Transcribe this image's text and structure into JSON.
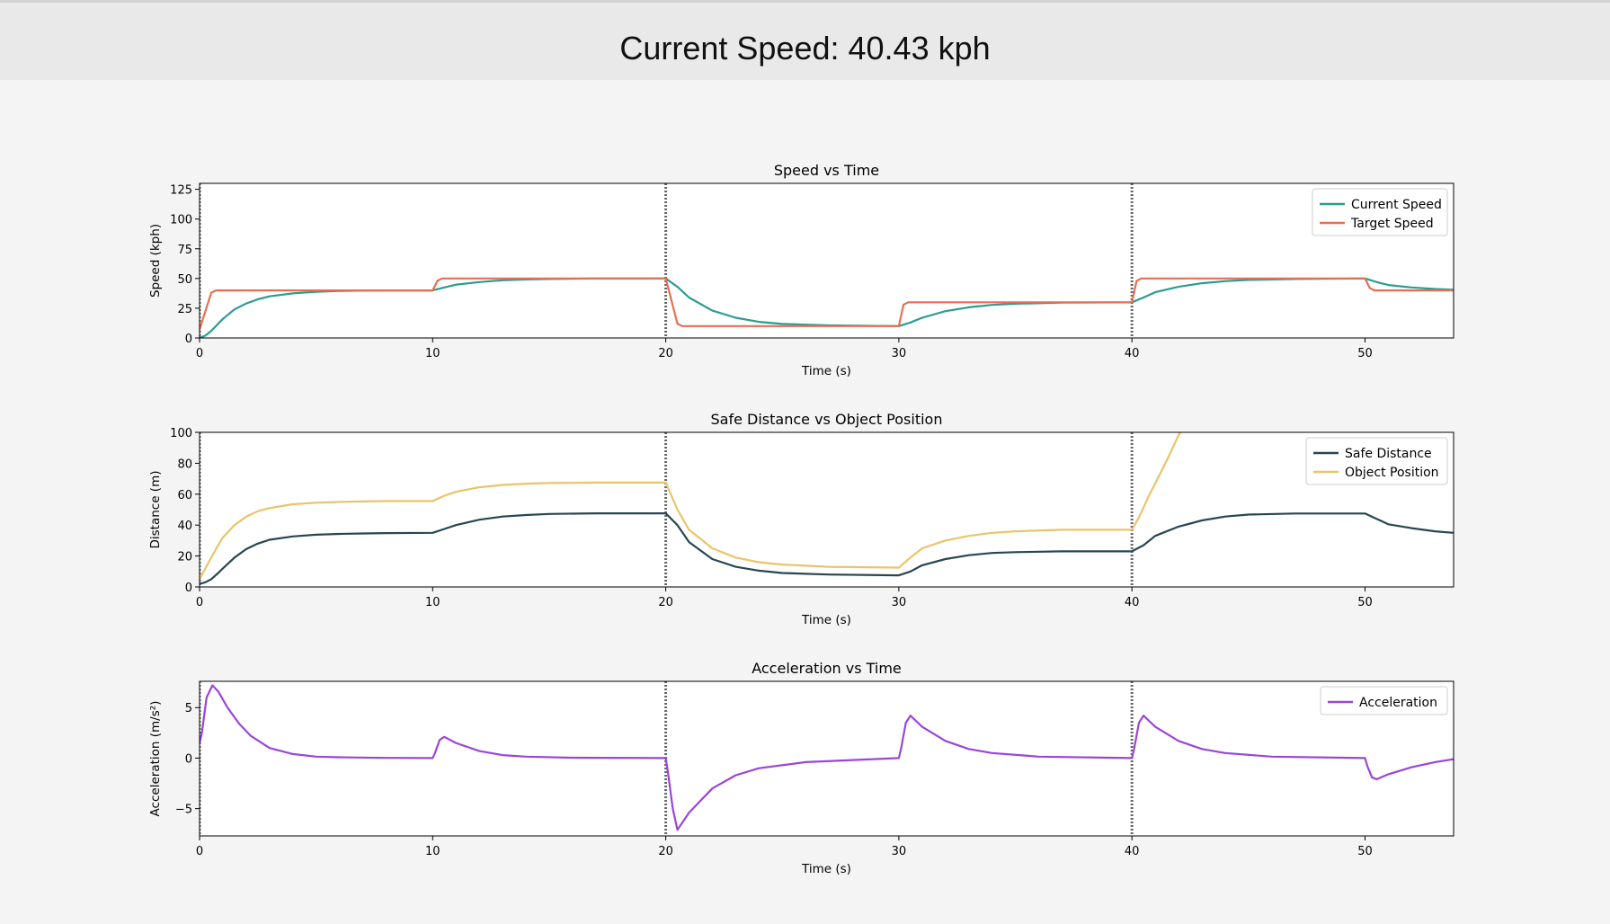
{
  "header": {
    "title": "Current Speed: 40.43 kph"
  },
  "markers": [
    20,
    40
  ],
  "chart_data": [
    {
      "type": "line",
      "title": "Speed vs Time",
      "xlabel": "Time (s)",
      "ylabel": "Speed (kph)",
      "xlim": [
        0,
        53.8
      ],
      "ylim": [
        0,
        130
      ],
      "xticks": [
        0,
        10,
        20,
        30,
        40,
        50
      ],
      "yticks": [
        0,
        25,
        50,
        75,
        100,
        125
      ],
      "legend": "top-right",
      "series": [
        {
          "name": "Current Speed",
          "color": "#2a9d8f",
          "x": [
            0,
            0.25,
            0.5,
            0.8,
            1,
            1.5,
            2,
            2.5,
            3,
            4,
            5,
            6,
            7,
            8,
            10,
            10.5,
            11,
            12,
            13,
            14,
            15,
            17,
            20,
            20.5,
            21,
            22,
            23,
            24,
            25,
            27,
            30,
            30.5,
            31,
            32,
            33,
            34,
            35,
            37,
            40,
            40.5,
            41,
            42,
            43,
            44,
            45,
            47,
            50,
            50.5,
            51,
            52,
            53,
            53.8
          ],
          "y": [
            0,
            2,
            6,
            12,
            16,
            24,
            29,
            32.5,
            35,
            37.5,
            38.8,
            39.5,
            39.8,
            40,
            40,
            42.5,
            44.8,
            47,
            48.5,
            49.2,
            49.6,
            50,
            50,
            43,
            34,
            23,
            17,
            13.5,
            11.8,
            10.6,
            10,
            13,
            17,
            22.5,
            25.8,
            27.8,
            28.8,
            29.7,
            30,
            34,
            38.5,
            43,
            46,
            47.8,
            48.8,
            49.6,
            50,
            47,
            44.5,
            42.5,
            41.2,
            40.6
          ]
        },
        {
          "name": "Target Speed",
          "color": "#e76f51",
          "x": [
            0,
            0.5,
            0.7,
            10,
            10.2,
            10.4,
            20,
            20.5,
            20.7,
            30,
            30.2,
            30.4,
            40,
            40.2,
            40.4,
            50,
            50.2,
            50.4,
            53.8
          ],
          "y": [
            7,
            38,
            40,
            40,
            48,
            50,
            50,
            12,
            10,
            10,
            28,
            30,
            30,
            48,
            50,
            50,
            42,
            40,
            40
          ]
        }
      ]
    },
    {
      "type": "line",
      "title": "Safe Distance vs Object Position",
      "xlabel": "Time (s)",
      "ylabel": "Distance (m)",
      "xlim": [
        0,
        53.8
      ],
      "ylim": [
        0,
        100
      ],
      "xticks": [
        0,
        10,
        20,
        30,
        40,
        50
      ],
      "yticks": [
        0,
        20,
        40,
        60,
        80,
        100
      ],
      "legend": "top-right",
      "series": [
        {
          "name": "Safe Distance",
          "color": "#264653",
          "x": [
            0,
            0.25,
            0.5,
            0.8,
            1,
            1.5,
            2,
            2.5,
            3,
            4,
            5,
            6,
            7,
            8,
            10,
            10.5,
            11,
            12,
            13,
            14,
            15,
            17,
            20,
            20.5,
            21,
            22,
            23,
            24,
            25,
            27,
            30,
            30.5,
            31,
            32,
            33,
            34,
            35,
            37,
            40,
            40.5,
            41,
            42,
            43,
            44,
            45,
            47,
            50,
            50.5,
            51,
            52,
            53,
            53.8
          ],
          "y": [
            2,
            3,
            5,
            9,
            12,
            19,
            24.5,
            28,
            30.5,
            32.7,
            33.8,
            34.3,
            34.6,
            34.8,
            35,
            37.5,
            40,
            43.5,
            45.5,
            46.5,
            47.2,
            47.6,
            47.6,
            40,
            29,
            18,
            13,
            10.5,
            9,
            8,
            7.5,
            10,
            14,
            18,
            20.5,
            22,
            22.5,
            23,
            23,
            27,
            33,
            39,
            43,
            45.5,
            46.8,
            47.5,
            47.5,
            44,
            40.5,
            38,
            36,
            35
          ]
        },
        {
          "name": "Object Position",
          "color": "#e9c46a",
          "x": [
            0,
            0.25,
            0.5,
            0.8,
            1,
            1.5,
            2,
            2.5,
            3,
            4,
            5,
            6,
            7,
            8,
            10,
            10.5,
            11,
            12,
            13,
            14,
            15,
            17,
            20,
            20.5,
            21,
            22,
            23,
            24,
            25,
            27,
            30,
            30.5,
            31,
            32,
            33,
            34,
            35,
            37,
            40,
            40.3,
            40.7,
            41,
            41.5,
            42,
            42.5
          ],
          "y": [
            5,
            12,
            19,
            27,
            32,
            40,
            45.5,
            49,
            51,
            53.5,
            54.5,
            55,
            55.3,
            55.5,
            55.5,
            59,
            61.5,
            64.5,
            66,
            66.8,
            67.2,
            67.5,
            67.5,
            50,
            37,
            25,
            19,
            16,
            14.5,
            13,
            12.5,
            19,
            25,
            30,
            33,
            35,
            36,
            37,
            37,
            45,
            58,
            67,
            82,
            98,
            110
          ]
        }
      ]
    },
    {
      "type": "line",
      "title": "Acceleration vs Time",
      "xlabel": "Time (s)",
      "ylabel": "Acceleration (m/s²)",
      "xlim": [
        0,
        53.8
      ],
      "ylim": [
        -7.7,
        7.6
      ],
      "xticks": [
        0,
        10,
        20,
        30,
        40,
        50
      ],
      "yticks": [
        -5,
        0,
        5
      ],
      "legend": "top-right",
      "series": [
        {
          "name": "Acceleration",
          "color": "#9b45d8",
          "x": [
            0,
            0.1,
            0.3,
            0.55,
            0.8,
            1.2,
            1.7,
            2.2,
            3,
            4,
            5,
            6,
            8,
            10,
            10.1,
            10.3,
            10.5,
            11,
            12,
            13,
            14,
            16,
            20,
            20.1,
            20.3,
            20.5,
            21,
            22,
            23,
            24,
            26,
            30,
            30.1,
            30.3,
            30.5,
            31,
            32,
            33,
            34,
            36,
            40,
            40.1,
            40.3,
            40.5,
            41,
            42,
            43,
            44,
            46,
            50,
            50.1,
            50.3,
            50.5,
            51,
            52,
            53,
            53.8
          ],
          "y": [
            1.5,
            2.5,
            6,
            7.2,
            6.6,
            5,
            3.4,
            2.2,
            1,
            0.4,
            0.15,
            0.08,
            0.02,
            0,
            0.5,
            1.8,
            2.1,
            1.5,
            0.7,
            0.3,
            0.15,
            0.04,
            0,
            -1.5,
            -5,
            -7.1,
            -5.4,
            -3,
            -1.7,
            -1,
            -0.4,
            0,
            1,
            3.5,
            4.2,
            3.1,
            1.7,
            0.9,
            0.5,
            0.15,
            0,
            1,
            3.5,
            4.2,
            3.1,
            1.7,
            0.9,
            0.5,
            0.15,
            0,
            -0.8,
            -1.9,
            -2.1,
            -1.6,
            -0.9,
            -0.4,
            -0.1
          ]
        }
      ]
    }
  ]
}
